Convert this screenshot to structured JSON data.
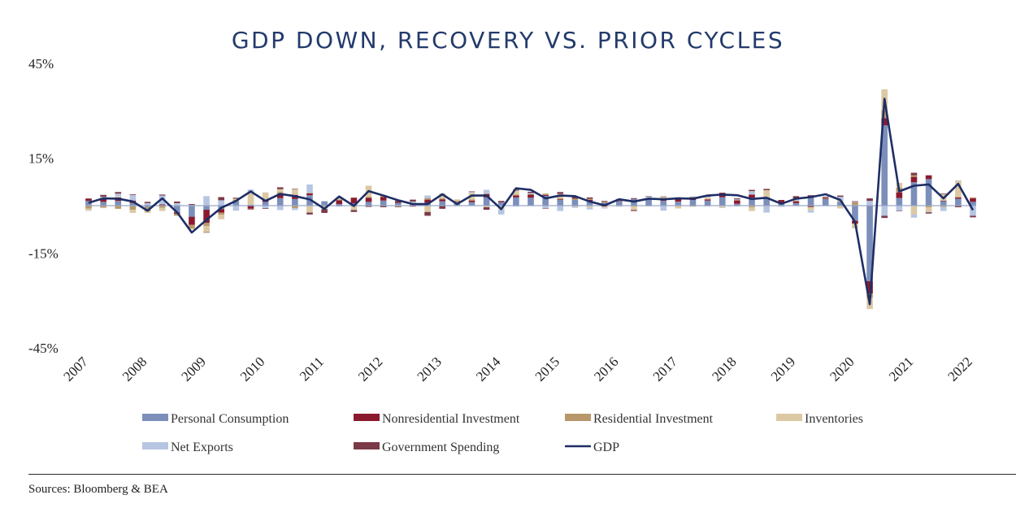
{
  "source": "Sources: Bloomberg & BEA",
  "colors": {
    "personal_consumption": "#7b8fba",
    "nonresidential_investment": "#8b1a2e",
    "residential_investment": "#b8986a",
    "inventories": "#dcc9a3",
    "net_exports": "#b6c5e2",
    "government_spending": "#7a3a48",
    "gdp": "#1e2e66",
    "zero_line": "#9aa8c8"
  },
  "chart_data": {
    "type": "bar",
    "title": "GDP DOWN, RECOVERY VS. PRIOR CYCLES",
    "ylim": [
      -45,
      45
    ],
    "y_ticks": [
      "45%",
      "15%",
      "-15%",
      "-45%"
    ],
    "y_tick_values": [
      45,
      15,
      -15,
      -45
    ],
    "x_ticks": [
      "2007",
      "2008",
      "2009",
      "2010",
      "2011",
      "2012",
      "2013",
      "2014",
      "2015",
      "2016",
      "2017",
      "2018",
      "2019",
      "2020",
      "2021",
      "2022"
    ],
    "x_start": 2007.0,
    "x_end": 2022.0,
    "legend_position": "bottom",
    "categories": [
      "2007Q1",
      "2007Q2",
      "2007Q3",
      "2007Q4",
      "2008Q1",
      "2008Q2",
      "2008Q3",
      "2008Q4",
      "2009Q1",
      "2009Q2",
      "2009Q3",
      "2009Q4",
      "2010Q1",
      "2010Q2",
      "2010Q3",
      "2010Q4",
      "2011Q1",
      "2011Q2",
      "2011Q3",
      "2011Q4",
      "2012Q1",
      "2012Q2",
      "2012Q3",
      "2012Q4",
      "2013Q1",
      "2013Q2",
      "2013Q3",
      "2013Q4",
      "2014Q1",
      "2014Q2",
      "2014Q3",
      "2014Q4",
      "2015Q1",
      "2015Q2",
      "2015Q3",
      "2015Q4",
      "2016Q1",
      "2016Q2",
      "2016Q3",
      "2016Q4",
      "2017Q1",
      "2017Q2",
      "2017Q3",
      "2017Q4",
      "2018Q1",
      "2018Q2",
      "2018Q3",
      "2018Q4",
      "2019Q1",
      "2019Q2",
      "2019Q3",
      "2019Q4",
      "2020Q1",
      "2020Q2",
      "2020Q3",
      "2020Q4",
      "2021Q1",
      "2021Q2",
      "2021Q3",
      "2021Q4",
      "2022Q1"
    ],
    "series": [
      {
        "name": "Personal Consumption",
        "key": "personal_consumption",
        "values": [
          1.5,
          1.2,
          1.5,
          0.8,
          -0.5,
          0.1,
          -2.2,
          -3.5,
          -1.3,
          -1.1,
          1.4,
          0.3,
          1.2,
          2.4,
          2.1,
          3.3,
          1.4,
          0.5,
          0.7,
          1.2,
          1.6,
          0.9,
          0.6,
          0.9,
          1.4,
          0.8,
          1.1,
          2.6,
          1.1,
          2.6,
          2.5,
          3.1,
          1.8,
          1.8,
          1.5,
          0.9,
          1.4,
          2.1,
          1.9,
          1.6,
          1.3,
          1.8,
          1.6,
          2.7,
          0.6,
          2.5,
          2.3,
          0.9,
          0.8,
          2.5,
          2.1,
          1.1,
          -4.8,
          -23.9,
          25.4,
          2.4,
          7.4,
          8.4,
          1.4,
          2.2,
          1.2
        ]
      },
      {
        "name": "Nonresidential Investment",
        "key": "nonresidential_investment",
        "values": [
          0.6,
          0.9,
          1.1,
          0.8,
          0.2,
          0.3,
          -0.4,
          -2.6,
          -4.1,
          -1.1,
          -0.1,
          -0.9,
          0.5,
          1.3,
          1.3,
          0.6,
          -0.1,
          1.2,
          1.8,
          1.3,
          1.1,
          0.5,
          -0.3,
          1.0,
          0.6,
          0.2,
          0.5,
          1.1,
          0.3,
          0.6,
          1.0,
          0.3,
          0.2,
          -0.2,
          0.3,
          -0.3,
          0.1,
          0.2,
          0.4,
          0.1,
          0.8,
          0.9,
          0.4,
          0.6,
          1.1,
          1.0,
          0.3,
          0.8,
          0.6,
          -0.4,
          0.2,
          -0.1,
          -0.9,
          -3.9,
          2.3,
          1.8,
          1.7,
          1.2,
          0.2,
          0.4,
          1.2
        ]
      },
      {
        "name": "Residential Investment",
        "key": "residential_investment",
        "values": [
          -0.9,
          -0.6,
          -1.0,
          -1.3,
          -1.3,
          -0.7,
          -0.6,
          -1.1,
          -1.1,
          -0.7,
          0.4,
          -0.1,
          -0.1,
          0.6,
          -0.8,
          0.1,
          -0.1,
          0.2,
          0.1,
          0.3,
          0.4,
          0.3,
          0.3,
          0.5,
          0.3,
          0.6,
          0.4,
          0.1,
          -0.1,
          0.3,
          0.1,
          0.4,
          0.4,
          0.4,
          0.4,
          0.4,
          0.3,
          -0.3,
          -0.2,
          0.3,
          0.4,
          -0.3,
          -0.2,
          0.4,
          -0.2,
          -0.5,
          -0.2,
          -0.2,
          -0.1,
          -0.1,
          0.2,
          0.3,
          1.1,
          -1.4,
          2.5,
          1.5,
          0.5,
          -0.5,
          -0.4,
          0.1,
          0.1
        ]
      },
      {
        "name": "Inventories",
        "key": "inventories",
        "values": [
          -0.6,
          -0.2,
          0.3,
          -1.0,
          -0.5,
          -1.0,
          0.2,
          -0.3,
          -1.9,
          -1.4,
          0.4,
          3.9,
          2.5,
          0.9,
          1.8,
          -2.2,
          -0.6,
          0.6,
          -1.3,
          3.5,
          0.2,
          -0.3,
          0.1,
          -2.0,
          1.6,
          0.4,
          2.1,
          -0.5,
          -1.1,
          1.3,
          -0.1,
          0.0,
          1.3,
          -0.2,
          -0.6,
          -0.3,
          -0.2,
          -1.1,
          0.2,
          0.8,
          -0.9,
          0.1,
          0.6,
          -0.6,
          0.1,
          -1.2,
          2.3,
          0.0,
          0.2,
          -1.0,
          -0.1,
          -0.8,
          -1.5,
          -3.5,
          6.6,
          1.5,
          -2.8,
          -1.4,
          2.0,
          5.2,
          0.2
        ]
      },
      {
        "name": "Net Exports",
        "key": "net_exports",
        "values": [
          -0.1,
          0.7,
          0.9,
          1.8,
          0.6,
          2.8,
          0.6,
          0.2,
          3.0,
          1.7,
          -1.5,
          0.9,
          -0.7,
          -1.4,
          -0.6,
          2.7,
          -0.3,
          0.1,
          -0.1,
          0.0,
          0.1,
          0.2,
          0.3,
          0.8,
          -0.1,
          -0.2,
          0.3,
          1.2,
          -1.6,
          -0.3,
          0.4,
          -0.8,
          -1.7,
          -0.3,
          -0.6,
          -0.3,
          -0.1,
          0.2,
          0.4,
          -1.6,
          0.2,
          0.1,
          0.3,
          -0.1,
          0.2,
          1.1,
          -2.0,
          -0.1,
          0.7,
          -0.7,
          0.0,
          1.4,
          0.1,
          1.5,
          -3.2,
          -1.6,
          -1.0,
          -0.2,
          -1.3,
          0.1,
          -3.2
        ]
      },
      {
        "name": "Government Spending",
        "key": "government_spending",
        "values": [
          0.2,
          0.6,
          0.5,
          0.2,
          0.4,
          0.3,
          0.5,
          0.3,
          -0.1,
          1.0,
          0.3,
          -0.2,
          -0.2,
          0.6,
          0.1,
          -0.6,
          -1.2,
          -0.2,
          -0.6,
          -0.4,
          -0.5,
          -0.2,
          0.6,
          -1.2,
          -0.9,
          0.0,
          0.1,
          -0.8,
          0.1,
          0.3,
          0.4,
          -0.1,
          0.6,
          0.6,
          0.4,
          0.2,
          0.3,
          -0.3,
          0.1,
          0.1,
          0.0,
          0.0,
          0.1,
          0.4,
          0.3,
          0.4,
          0.4,
          0.1,
          0.7,
          0.8,
          0.3,
          0.4,
          0.2,
          0.8,
          -0.7,
          -0.1,
          0.8,
          -0.4,
          0.2,
          -0.5,
          -0.5
        ]
      },
      {
        "name": "GDP",
        "key": "gdp",
        "values": [
          0.9,
          2.3,
          2.2,
          1.3,
          -1.6,
          2.3,
          -2.1,
          -8.5,
          -4.5,
          -0.7,
          1.5,
          4.5,
          1.5,
          3.7,
          3.0,
          2.0,
          -1.0,
          2.9,
          -0.1,
          4.6,
          3.2,
          1.7,
          0.5,
          0.5,
          3.6,
          0.5,
          3.2,
          3.2,
          -1.1,
          5.5,
          5.0,
          2.3,
          3.2,
          3.0,
          1.3,
          0.1,
          2.0,
          1.3,
          2.2,
          2.0,
          2.3,
          2.2,
          3.2,
          3.5,
          3.3,
          2.1,
          2.5,
          0.6,
          2.2,
          2.7,
          3.6,
          1.8,
          -5.1,
          -31.2,
          33.8,
          4.5,
          6.3,
          6.7,
          2.3,
          6.9,
          -1.4
        ]
      }
    ]
  }
}
